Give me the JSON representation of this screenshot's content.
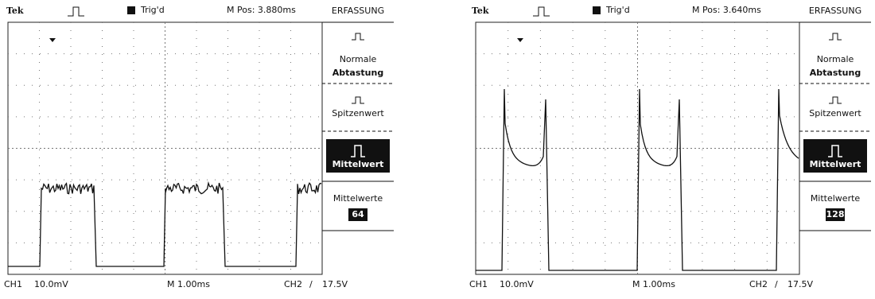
{
  "panels": [
    {
      "brand": "Tek",
      "trigger": "Trig'd",
      "position": "M Pos: 3.880ms",
      "menu": {
        "title": "ERFASSUNG",
        "items": [
          "Normale",
          "Abtastung",
          "Spitzenwert",
          "Mittelwert"
        ],
        "averages_label": "Mittelwerte",
        "averages_value": "64"
      },
      "footer": {
        "ch1": "CH1",
        "ch1_scale": "10.0mV",
        "timebase": "M 1.00ms",
        "ch2": "CH2",
        "slope": "/",
        "ch2_level": "17.5V"
      }
    },
    {
      "brand": "Tek",
      "trigger": "Trig'd",
      "position": "M Pos: 3.640ms",
      "menu": {
        "title": "ERFASSUNG",
        "items": [
          "Normale",
          "Abtastung",
          "Spitzenwert",
          "Mittelwert"
        ],
        "averages_label": "Mittelwerte",
        "averages_value": "128"
      },
      "footer": {
        "ch1": "CH1",
        "ch1_scale": "10.0mV",
        "timebase": "M 1.00ms",
        "ch2": "CH2",
        "slope": "/",
        "ch2_level": "17.5V"
      }
    }
  ]
}
